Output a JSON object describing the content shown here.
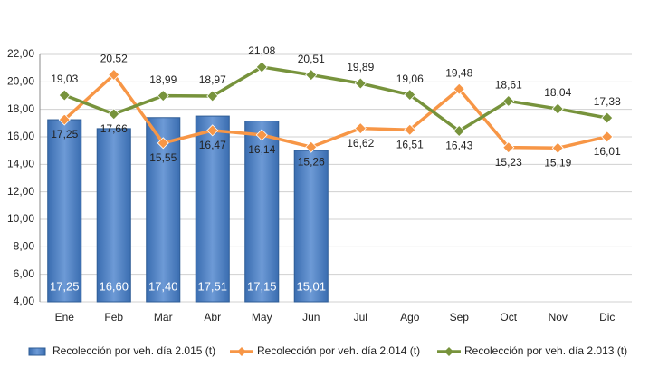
{
  "chart_data": {
    "type": "bar",
    "categories": [
      "Ene",
      "Feb",
      "Mar",
      "Abr",
      "May",
      "Jun",
      "Jul",
      "Ago",
      "Sep",
      "Oct",
      "Nov",
      "Dic"
    ],
    "series": [
      {
        "name": "Recolección por veh. día 2.015 (t)",
        "type": "bar",
        "color": "#4f81bd",
        "values": [
          17.25,
          16.6,
          17.4,
          17.51,
          17.15,
          15.01,
          null,
          null,
          null,
          null,
          null,
          null
        ],
        "value_labels": [
          "17,25",
          "16,60",
          "17,40",
          "17,51",
          "17,15",
          "15,01",
          null,
          null,
          null,
          null,
          null,
          null
        ]
      },
      {
        "name": "Recolección por veh. día 2.014 (t)",
        "type": "line",
        "color": "#f79646",
        "values": [
          17.25,
          20.52,
          15.55,
          16.47,
          16.14,
          15.26,
          16.62,
          16.51,
          19.48,
          15.23,
          15.19,
          16.01
        ],
        "value_labels": [
          "17,25",
          "20,52",
          "15,55",
          "16,47",
          "16,14",
          "15,26",
          "16,62",
          "16,51",
          "19,48",
          "15,23",
          "15,19",
          "16,01"
        ]
      },
      {
        "name": "Recolección por veh. día 2.013 (t)",
        "type": "line",
        "color": "#77933c",
        "values": [
          19.03,
          17.66,
          18.99,
          18.97,
          21.08,
          20.51,
          19.89,
          19.06,
          16.43,
          18.61,
          18.04,
          17.38
        ],
        "value_labels": [
          "19,03",
          "17,66",
          "18,99",
          "18,97",
          "21,08",
          "20,51",
          "19,89",
          "19,06",
          "16,43",
          "18,61",
          "18,04",
          "17,38"
        ]
      }
    ],
    "ylim": [
      4,
      22
    ],
    "yticks": [
      {
        "value": 4,
        "label": "4,00"
      },
      {
        "value": 6,
        "label": "6,00"
      },
      {
        "value": 8,
        "label": "8,00"
      },
      {
        "value": 10,
        "label": "10,00"
      },
      {
        "value": 12,
        "label": "12,00"
      },
      {
        "value": 14,
        "label": "14,00"
      },
      {
        "value": 16,
        "label": "16,00"
      },
      {
        "value": 18,
        "label": "18,00"
      },
      {
        "value": 20,
        "label": "20,00"
      },
      {
        "value": 22,
        "label": "22,00"
      }
    ],
    "grid": true,
    "legend": "bottom"
  }
}
